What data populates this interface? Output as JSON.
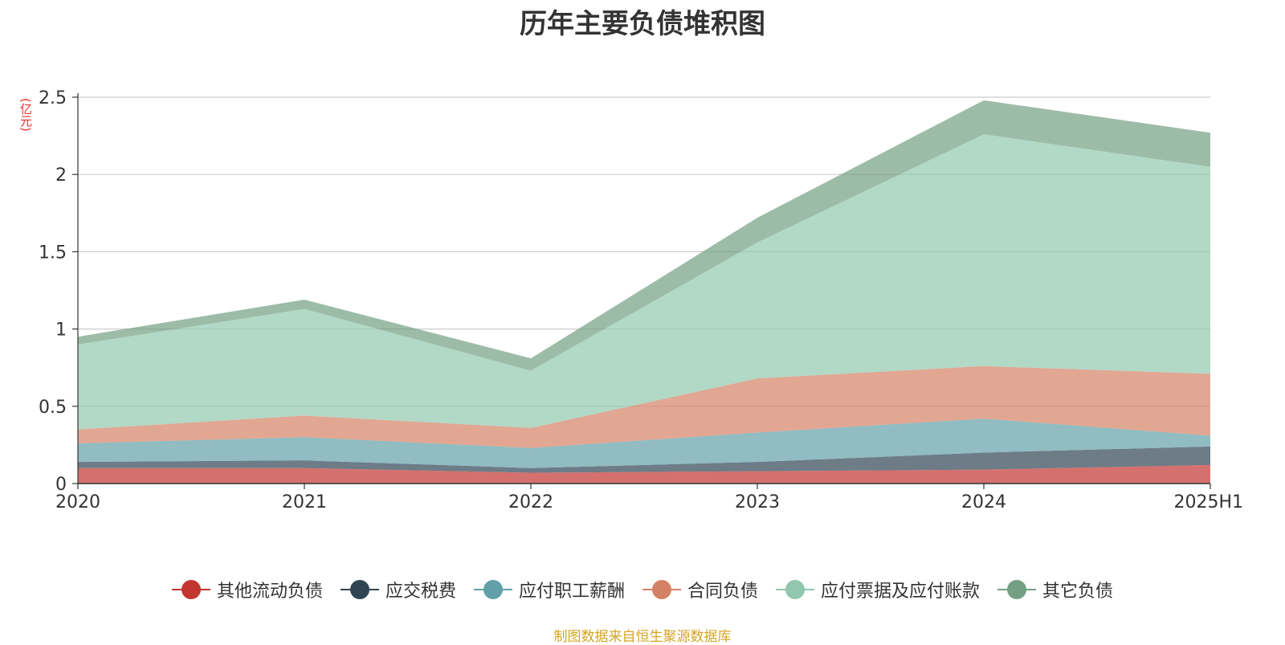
{
  "chart_data": {
    "type": "area",
    "stacked": true,
    "title": "历年主要负债堆积图",
    "ylabel": "(亿元)",
    "xlabel": "",
    "categories": [
      "2020",
      "2021",
      "2022",
      "2023",
      "2024",
      "2025H1"
    ],
    "ylim": [
      0,
      2.5
    ],
    "yticks": [
      "0",
      "0.5",
      "1",
      "1.5",
      "2",
      "2.5"
    ],
    "grid": true,
    "legend_position": "bottom",
    "series": [
      {
        "name": "其他流动负债",
        "color": "#c23531",
        "values": [
          0.1,
          0.1,
          0.07,
          0.08,
          0.09,
          0.12
        ]
      },
      {
        "name": "应交税费",
        "color": "#2f4554",
        "values": [
          0.04,
          0.05,
          0.03,
          0.06,
          0.11,
          0.12
        ]
      },
      {
        "name": "应付职工薪酬",
        "color": "#61a0a8",
        "values": [
          0.12,
          0.15,
          0.13,
          0.19,
          0.22,
          0.07
        ]
      },
      {
        "name": "合同负债",
        "color": "#d48265",
        "values": [
          0.09,
          0.14,
          0.13,
          0.35,
          0.34,
          0.4
        ]
      },
      {
        "name": "应付票据及应付账款",
        "color": "#91c7ae",
        "values": [
          0.55,
          0.69,
          0.37,
          0.88,
          1.5,
          1.34
        ]
      },
      {
        "name": "其它负债",
        "color": "#749f83",
        "values": [
          0.05,
          0.06,
          0.08,
          0.16,
          0.22,
          0.22
        ]
      }
    ]
  },
  "source_text": "制图数据来自恒生聚源数据库"
}
